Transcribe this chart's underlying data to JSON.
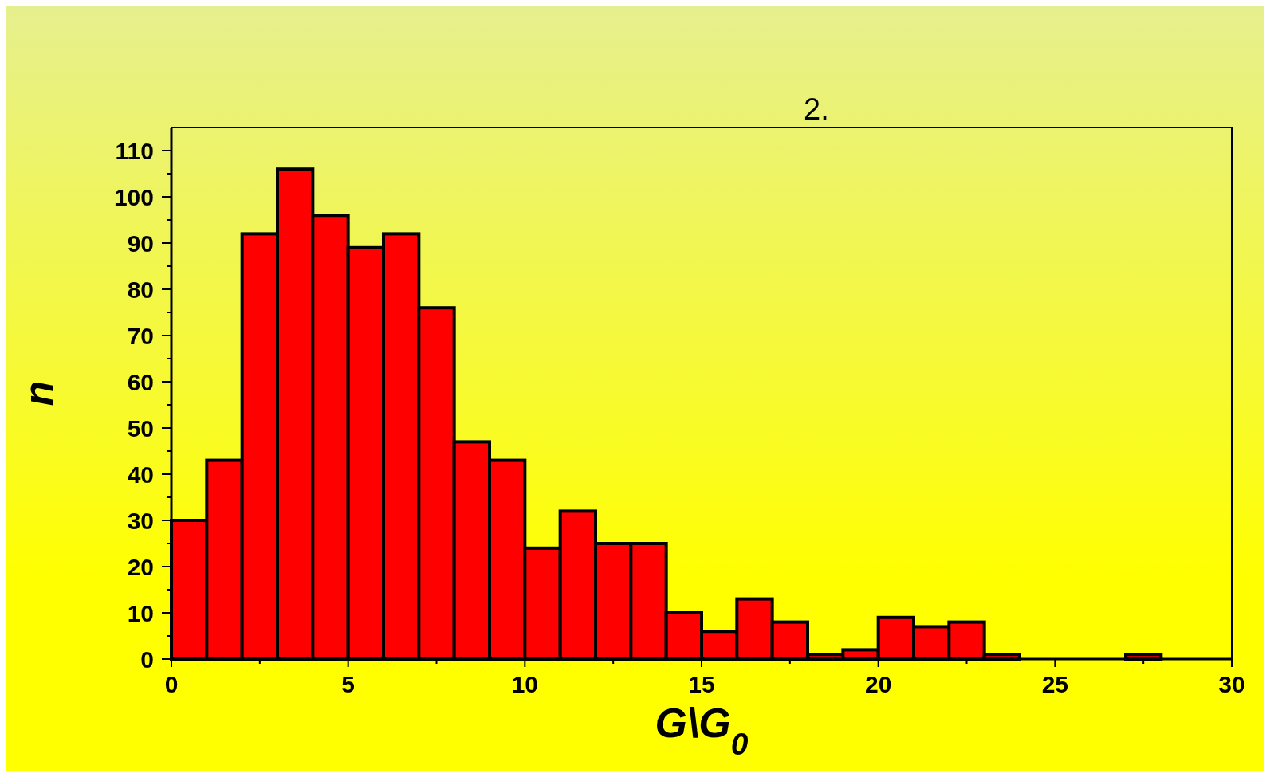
{
  "chart_data": {
    "type": "histogram",
    "xlabel": "G\\G$_{0}$",
    "ylabel": "n",
    "annotations": [
      "2."
    ],
    "bins": [
      0,
      1,
      2,
      3,
      4,
      5,
      6,
      7,
      8,
      9,
      10,
      11,
      12,
      13,
      14,
      15,
      16,
      17,
      18,
      19,
      20,
      21,
      22,
      23,
      24,
      25,
      26,
      27,
      28,
      29,
      30
    ],
    "values": [
      30,
      43,
      92,
      106,
      96,
      89,
      92,
      76,
      47,
      43,
      24,
      32,
      25,
      25,
      10,
      6,
      13,
      8,
      1,
      2,
      9,
      7,
      8,
      1,
      0,
      0,
      0,
      1,
      0,
      0
    ],
    "color": "#ff0000",
    "xlim": [
      0,
      30
    ],
    "ylim": [
      0,
      115
    ],
    "xticks": [
      0,
      {
        "value": 2.5,
        "label": null
      },
      5,
      {
        "value": 7.5,
        "label": null
      },
      10,
      {
        "value": 12.5,
        "label": null
      },
      15,
      {
        "value": 17.5,
        "label": null
      },
      20,
      {
        "value": 22.5,
        "label": null
      },
      25,
      {
        "value": 27.5,
        "label": null
      },
      30
    ],
    "yticks": [
      0,
      {
        "value": 5,
        "label": null
      },
      10,
      {
        "value": 15,
        "label": null
      },
      20,
      {
        "value": 25,
        "label": null
      },
      30,
      {
        "value": 35,
        "label": null
      },
      40,
      {
        "value": 45,
        "label": null
      },
      50,
      {
        "value": 55,
        "label": null
      },
      60,
      {
        "value": 65,
        "label": null
      },
      70,
      {
        "value": 75,
        "label": null
      },
      80,
      {
        "value": 85,
        "label": null
      },
      90,
      {
        "value": 95,
        "label": null
      },
      100,
      {
        "value": 105,
        "label": null
      },
      110
    ],
    "grid": false
  }
}
